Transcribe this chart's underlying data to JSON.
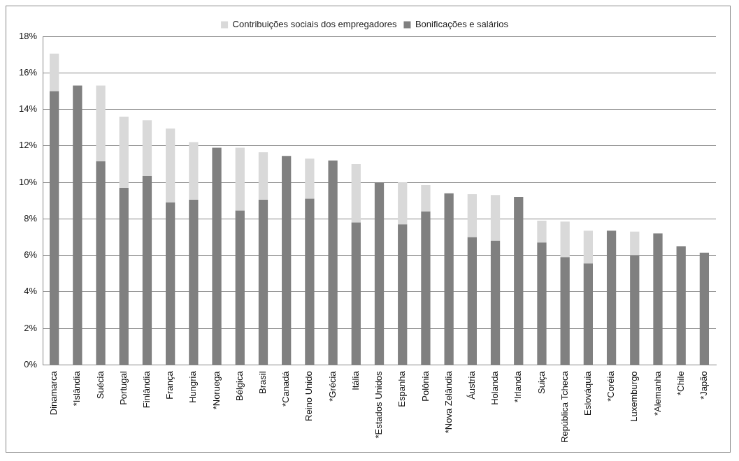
{
  "chart_data": {
    "type": "bar",
    "stacked": true,
    "legend": "top",
    "grid": "y",
    "categories": [
      "Dinamarca",
      "*Islândia",
      "Suécia",
      "Portugal",
      "Finlândia",
      "França",
      "Hungria",
      "*Noruega",
      "Bélgica",
      "Brasil",
      "*Canadá",
      "Reino Unido",
      "*Grécia",
      "Itália",
      "*Estados Unidos",
      "Espanha",
      "Polônia",
      "*Nova Zelândia",
      "Áustria",
      "Holanda",
      "*Irlanda",
      "Suiça",
      "República Tcheca",
      "Eslováquia",
      "*Coréia",
      "Luxemburgo",
      "*Alemanha",
      "*Chile",
      "*Japão"
    ],
    "ylim": [
      0,
      18
    ],
    "yticks": [
      {
        "value": 0,
        "label": "0%"
      },
      {
        "value": 2,
        "label": "2%"
      },
      {
        "value": 4,
        "label": "4%"
      },
      {
        "value": 6,
        "label": "6%"
      },
      {
        "value": 8,
        "label": "8%"
      },
      {
        "value": 10,
        "label": "10%"
      },
      {
        "value": 12,
        "label": "12%"
      },
      {
        "value": 14,
        "label": "14%"
      },
      {
        "value": 16,
        "label": "16%"
      },
      {
        "value": 18,
        "label": "18%"
      }
    ],
    "series": [
      {
        "name": "Bonificações e salários",
        "color": "#808080",
        "values": [
          15.0,
          15.3,
          11.15,
          9.7,
          10.35,
          8.9,
          9.05,
          11.9,
          8.45,
          9.05,
          11.45,
          9.1,
          11.2,
          7.8,
          10.0,
          7.7,
          8.4,
          9.4,
          7.0,
          6.8,
          9.2,
          6.7,
          5.9,
          5.55,
          7.35,
          6.0,
          7.2,
          6.5,
          6.15
        ]
      },
      {
        "name": "Contribuições sociais dos empregadores",
        "color": "#d9d9d9",
        "values": [
          2.05,
          null,
          4.15,
          3.9,
          3.05,
          4.05,
          3.15,
          null,
          3.45,
          2.6,
          null,
          2.2,
          null,
          3.2,
          null,
          2.3,
          1.45,
          null,
          2.35,
          2.5,
          null,
          1.2,
          1.95,
          1.8,
          null,
          1.3,
          null,
          null,
          null
        ]
      }
    ]
  }
}
